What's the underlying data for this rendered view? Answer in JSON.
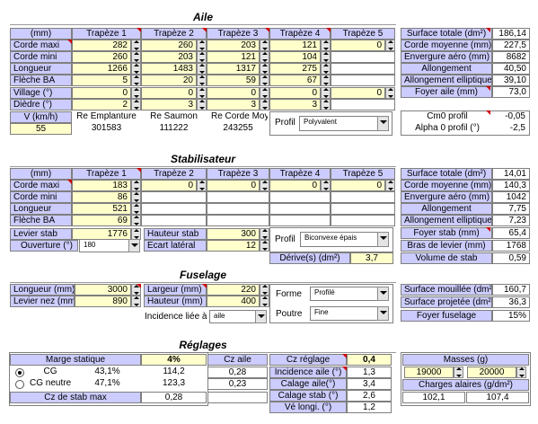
{
  "aile": {
    "title": "Aile",
    "headers": [
      "(mm)",
      "Trapèze 1",
      "Trapèze 2",
      "Trapèze 3",
      "Trapèze 4",
      "Trapèze 5"
    ],
    "rows": [
      {
        "label": "Corde maxi",
        "values": [
          "282",
          "260",
          "203",
          "121",
          "0"
        ]
      },
      {
        "label": "Corde mini",
        "values": [
          "260",
          "203",
          "121",
          "104"
        ]
      },
      {
        "label": "Longueur",
        "values": [
          "1266",
          "1483",
          "1317",
          "275"
        ]
      },
      {
        "label": "Flèche BA",
        "values": [
          "5",
          "20",
          "59",
          "67"
        ]
      },
      {
        "label": "Village (°)",
        "values": [
          "0",
          "0",
          "0",
          "0",
          "0"
        ]
      },
      {
        "label": "Dièdre (°)",
        "values": [
          "2",
          "3",
          "3",
          "3"
        ]
      }
    ],
    "v": {
      "label": "V (km/h)",
      "value": "55"
    },
    "re": [
      {
        "label": "Re Emplanture",
        "value": "301583"
      },
      {
        "label": "Re Saumon",
        "value": "111222"
      },
      {
        "label": "Re Corde Moy.",
        "value": "243255"
      }
    ],
    "profil": {
      "label": "Profil",
      "value": "Polyvalent"
    },
    "results": [
      {
        "label": "Surface totale (dm²)",
        "value": "186,14"
      },
      {
        "label": "Corde moyenne (mm)",
        "value": "227,5"
      },
      {
        "label": "Envergure aéro (mm)",
        "value": "8682"
      },
      {
        "label": "Allongement",
        "value": "40,50"
      },
      {
        "label": "Allongement elliptique",
        "value": "39,10"
      },
      {
        "label": "Foyer aile (mm)",
        "value": "73,0"
      }
    ],
    "profile_results": [
      {
        "label": "Cm0 profil",
        "value": "-0,05"
      },
      {
        "label": "Alpha 0 profil (°)",
        "value": "-2,5"
      }
    ]
  },
  "stabilisateur": {
    "title": "Stabilisateur",
    "headers": [
      "(mm)",
      "Trapèze 1",
      "Trapèze 2",
      "Trapèze 3",
      "Trapèze 4",
      "Trapèze 5"
    ],
    "rows": [
      {
        "label": "Corde maxi",
        "values": [
          "183",
          "0",
          "0",
          "0",
          "0"
        ]
      },
      {
        "label": "Corde mini",
        "values": [
          "86"
        ]
      },
      {
        "label": "Longueur",
        "values": [
          "521"
        ]
      },
      {
        "label": "Flèche BA",
        "values": [
          "69"
        ]
      }
    ],
    "levier": {
      "label": "Levier stab",
      "value": "1776"
    },
    "ouverture": {
      "label": "Ouverture (°)",
      "value": "180"
    },
    "hauteur": {
      "label": "Hauteur stab",
      "value": "300"
    },
    "ecart": {
      "label": "Ecart latéral",
      "value": "12"
    },
    "profil": {
      "label": "Profil",
      "value": "Biconvexe épais"
    },
    "derive": {
      "label": "Dérive(s) (dm²)",
      "value": "3,7"
    },
    "results": [
      {
        "label": "Surface totale (dm²)",
        "value": "14,01"
      },
      {
        "label": "Corde moyenne (mm)",
        "value": "140,3"
      },
      {
        "label": "Envergure aéro (mm)",
        "value": "1042"
      },
      {
        "label": "Allongement",
        "value": "7,75"
      },
      {
        "label": "Allongement elliptique",
        "value": "7,23"
      },
      {
        "label": "Foyer stab (mm)",
        "value": "65,4"
      },
      {
        "label": "Bras de levier (mm)",
        "value": "1768"
      },
      {
        "label": "Volume de stab",
        "value": "0,59"
      }
    ]
  },
  "fuselage": {
    "title": "Fuselage",
    "left": [
      {
        "label": "Longueur (mm)",
        "value": "3000"
      },
      {
        "label": "Levier nez (mm)",
        "value": "890"
      }
    ],
    "mid": [
      {
        "label": "Largeur (mm)",
        "value": "220"
      },
      {
        "label": "Hauteur (mm)",
        "value": "400"
      }
    ],
    "incidence": {
      "label": "Incidence liée à",
      "value": "aile"
    },
    "forme": {
      "label": "Forme",
      "value": "Profilé"
    },
    "poutre": {
      "label": "Poutre",
      "value": "Fine"
    },
    "results": [
      {
        "label": "Surface mouillée (dm²)",
        "value": "160,7"
      },
      {
        "label": "Surface projetée (dm²)",
        "value": "36,3"
      },
      {
        "label": "Foyer fuselage",
        "value": "15%"
      }
    ]
  },
  "reglages": {
    "title": "Réglages",
    "marge": {
      "label": "Marge statique",
      "value": "4%"
    },
    "cg": [
      {
        "label": "CG",
        "pct": "43,1%",
        "value": "114,2"
      },
      {
        "label": "CG neutre",
        "pct": "47,1%",
        "value": "123,3"
      }
    ],
    "cz_stab_max": {
      "label": "Cz de stab max",
      "value": "0,28"
    },
    "cz_aile": {
      "label": "Cz aile",
      "values": [
        "0,28",
        "0,23"
      ]
    },
    "cz_reglage": {
      "label": "Cz réglage",
      "value": "0,4"
    },
    "calages": [
      {
        "label": "Incidence aile (°)",
        "value": "1,3"
      },
      {
        "label": "Calage aile(°)",
        "value": "3,4"
      },
      {
        "label": "Calage stab (°)",
        "value": "2,6"
      },
      {
        "label": "Vé longi. (°)",
        "value": "1,2"
      }
    ],
    "masses": {
      "label": "Masses (g)",
      "values": [
        "19000",
        "20000"
      ]
    },
    "charges": {
      "label": "Charges alaires (g/dm²)",
      "values": [
        "102,1",
        "107,4"
      ]
    }
  }
}
